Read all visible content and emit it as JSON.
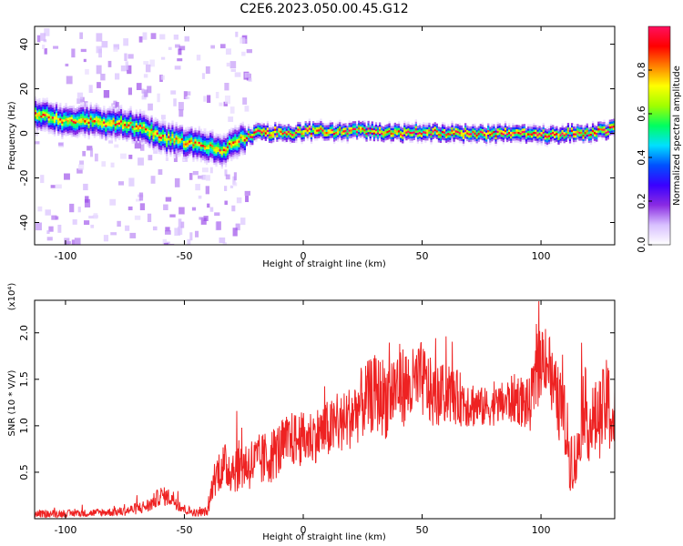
{
  "figure": {
    "title": "C2E6.2023.050.00.45.G12"
  },
  "chart_data": [
    {
      "type": "heatmap",
      "xlabel": "Height of straight line (km)",
      "ylabel": "Frequency (Hz)",
      "xlim": [
        -113,
        131
      ],
      "ylim": [
        -50,
        48
      ],
      "xticks": [
        -100,
        -50,
        0,
        50,
        100
      ],
      "yticks": [
        -40,
        -20,
        0,
        20,
        40
      ],
      "grid": false,
      "ridge": {
        "x": [
          -113,
          -105,
          -100,
          -95,
          -90,
          -85,
          -80,
          -75,
          -70,
          -65,
          -60,
          -55,
          -50,
          -45,
          -40,
          -35,
          -30,
          -25,
          -20,
          -15,
          -10,
          -5,
          0,
          10,
          20,
          30,
          40,
          50,
          60,
          70,
          80,
          90,
          100,
          110,
          120,
          131
        ],
        "y": [
          8,
          7,
          5,
          6,
          6,
          4,
          5,
          4,
          3,
          1,
          -2,
          -3,
          -4,
          -5,
          -6,
          -8,
          -4,
          -2,
          0,
          0,
          1,
          0,
          1,
          1,
          1,
          1,
          0,
          1,
          0,
          0,
          0,
          0,
          -1,
          0,
          0,
          2
        ]
      },
      "colorbar": {
        "label": "Normalized spectral amplitude",
        "ticks": [
          "0.0",
          "0.2",
          "0.4",
          "0.6",
          "0.8"
        ],
        "tick_values": [
          0,
          0.2,
          0.4,
          0.6,
          0.8
        ],
        "range": [
          0,
          1
        ],
        "colormap": [
          "#ffffff",
          "#d8c0ff",
          "#8a2be2",
          "#3a00ff",
          "#0050ff",
          "#00e0ff",
          "#00ff60",
          "#a0ff00",
          "#ffff00",
          "#ff8000",
          "#ff0000",
          "#ff1060"
        ]
      }
    },
    {
      "type": "line",
      "xlabel": "Height of straight line (km)",
      "ylabel": "SNR (10 * V/V)",
      "scale_label": "(x10⁴)",
      "xlim": [
        -113,
        131
      ],
      "ylim": [
        0,
        2.35
      ],
      "xticks": [
        -100,
        -50,
        0,
        50,
        100
      ],
      "yticks": [
        0.5,
        1.0,
        1.5,
        2.0
      ],
      "ytick_labels": [
        "0.5",
        "1.0",
        "1.5",
        "2.0"
      ],
      "grid": false,
      "color": "#ee2222",
      "envelope": {
        "x": [
          -113,
          -90,
          -75,
          -65,
          -60,
          -55,
          -50,
          -45,
          -40,
          -38,
          -35,
          -30,
          -25,
          -20,
          -15,
          -10,
          -5,
          0,
          5,
          10,
          15,
          20,
          25,
          30,
          35,
          40,
          45,
          50,
          55,
          60,
          65,
          70,
          75,
          80,
          85,
          90,
          95,
          100,
          102,
          105,
          108,
          110,
          112,
          115,
          118,
          120,
          125,
          128,
          131
        ],
        "y": [
          0.05,
          0.06,
          0.08,
          0.14,
          0.25,
          0.22,
          0.1,
          0.06,
          0.08,
          0.4,
          0.55,
          0.55,
          0.58,
          0.6,
          0.65,
          0.75,
          0.85,
          0.85,
          0.9,
          0.95,
          1.0,
          1.1,
          1.25,
          1.35,
          1.3,
          1.45,
          1.4,
          1.5,
          1.3,
          1.35,
          1.3,
          1.25,
          1.2,
          1.2,
          1.25,
          1.3,
          1.2,
          1.7,
          1.8,
          1.4,
          1.2,
          1.05,
          0.7,
          0.6,
          1.3,
          1.0,
          1.1,
          1.25,
          1.0
        ],
        "noise": [
          0.04,
          0.04,
          0.05,
          0.08,
          0.1,
          0.1,
          0.06,
          0.04,
          0.05,
          0.18,
          0.25,
          0.28,
          0.28,
          0.3,
          0.3,
          0.3,
          0.3,
          0.3,
          0.3,
          0.32,
          0.32,
          0.35,
          0.4,
          0.42,
          0.45,
          0.45,
          0.42,
          0.42,
          0.35,
          0.32,
          0.3,
          0.28,
          0.22,
          0.2,
          0.25,
          0.28,
          0.3,
          0.4,
          0.45,
          0.4,
          0.4,
          0.42,
          0.4,
          0.3,
          0.45,
          0.4,
          0.45,
          0.5,
          0.5
        ]
      }
    }
  ]
}
